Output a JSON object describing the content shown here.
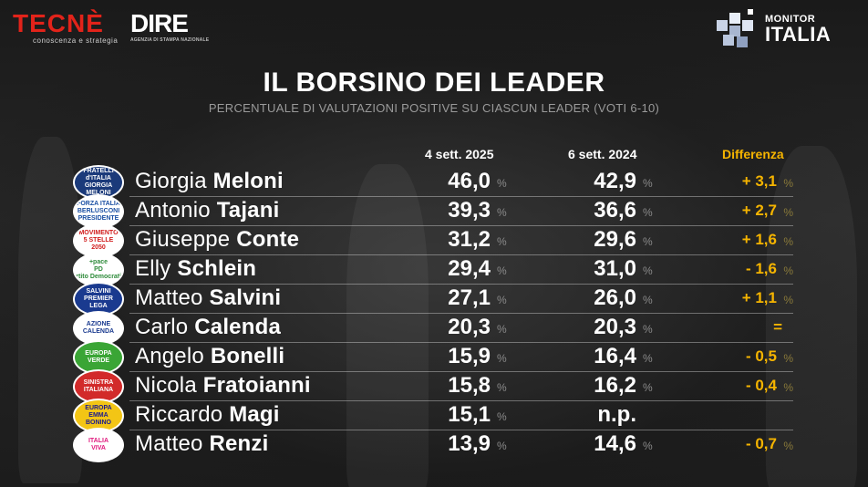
{
  "brand": {
    "tecne_name": "TECNÈ",
    "tecne_tagline": "conoscenza e strategia",
    "dire_name": "DIRE",
    "dire_tagline": "AGENZIA DI STAMPA NAZIONALE",
    "monitor_small": "MONITOR",
    "monitor_big": "ITALIA"
  },
  "chart_data": {
    "type": "table",
    "title": "IL BORSINO DEI LEADER",
    "subtitle": "PERCENTUALE DI VALUTAZIONI POSITIVE SU CIASCUN LEADER (VOTI 6-10)",
    "columns": [
      "4 sett. 2025",
      "6 sett. 2024",
      "Differenza"
    ],
    "percent_sign": "%",
    "rows": [
      {
        "first": "Giorgia",
        "last": "Meloni",
        "v2025": "46,0",
        "v2024": "42,9",
        "diff": "+ 3,1",
        "logo": [
          "FRATELLI",
          "d'ITALIA",
          "GIORGIA",
          "MELONI"
        ]
      },
      {
        "first": "Antonio",
        "last": "Tajani",
        "v2025": "39,3",
        "v2024": "36,6",
        "diff": "+ 2,7",
        "logo": [
          "FORZA ITALIA",
          "BERLUSCONI",
          "PRESIDENTE"
        ]
      },
      {
        "first": "Giuseppe",
        "last": "Conte",
        "v2025": "31,2",
        "v2024": "29,6",
        "diff": "+ 1,6",
        "logo": [
          "MOVIMENTO",
          "5 STELLE",
          "2050"
        ]
      },
      {
        "first": "Elly",
        "last": "Schlein",
        "v2025": "29,4",
        "v2024": "31,0",
        "diff": "- 1,6",
        "logo": [
          "+pace",
          "PD",
          "Partito Democratico"
        ]
      },
      {
        "first": "Matteo",
        "last": "Salvini",
        "v2025": "27,1",
        "v2024": "26,0",
        "diff": "+ 1,1",
        "logo": [
          "SALVINI",
          "PREMIER",
          "LEGA"
        ]
      },
      {
        "first": "Carlo",
        "last": "Calenda",
        "v2025": "20,3",
        "v2024": "20,3",
        "diff": "=",
        "logo": [
          "AZIONE",
          "CALENDA"
        ]
      },
      {
        "first": "Angelo",
        "last": "Bonelli",
        "v2025": "15,9",
        "v2024": "16,4",
        "diff": "- 0,5",
        "logo": [
          "EUROPA",
          "VERDE"
        ]
      },
      {
        "first": "Nicola",
        "last": "Fratoianni",
        "v2025": "15,8",
        "v2024": "16,2",
        "diff": "- 0,4",
        "logo": [
          "SINISTRA",
          "ITALIANA"
        ]
      },
      {
        "first": "Riccardo",
        "last": "Magi",
        "v2025": "15,1",
        "v2024": "n.p.",
        "diff": "",
        "logo": [
          "EUROPA",
          "EMMA",
          "BONINO"
        ]
      },
      {
        "first": "Matteo",
        "last": "Renzi",
        "v2025": "13,9",
        "v2024": "14,6",
        "diff": "- 0,7",
        "logo": [
          "ITALIA",
          "VIVA"
        ]
      }
    ],
    "colors": {
      "accent": "#f5b400",
      "text": "#ffffff",
      "muted": "#8a8a8a"
    }
  }
}
